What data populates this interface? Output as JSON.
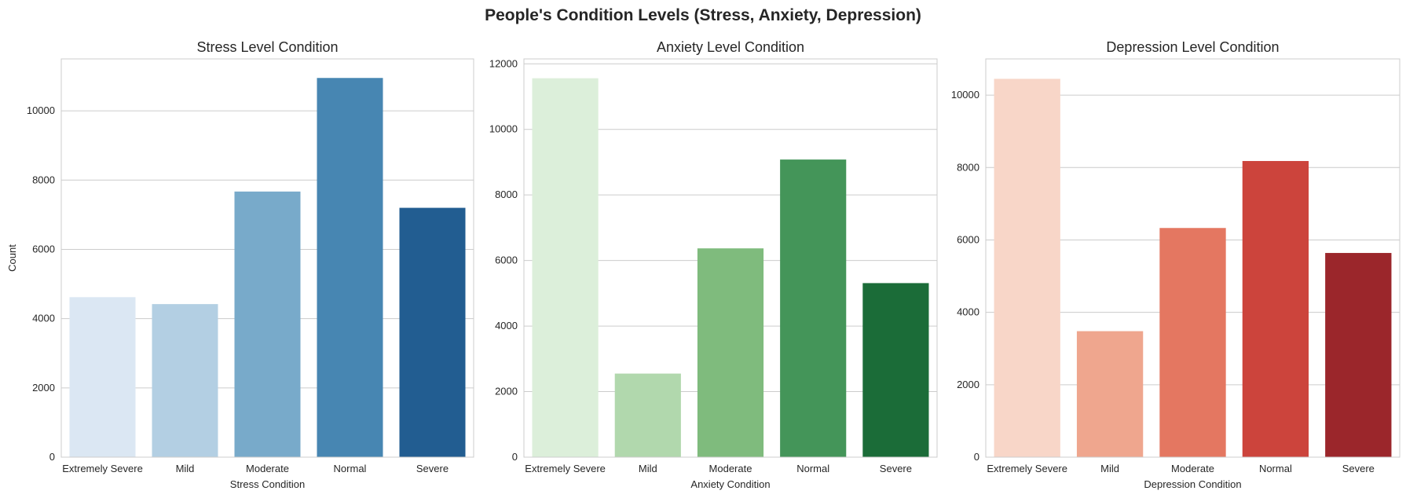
{
  "suptitle": "People's Condition Levels (Stress, Anxiety, Depression)",
  "chart_data": [
    {
      "type": "bar",
      "title": "Stress Level Condition",
      "xlabel": "Stress Condition",
      "ylabel": "Count",
      "categories": [
        "Extremely Severe",
        "Mild",
        "Moderate",
        "Normal",
        "Severe"
      ],
      "values": [
        4620,
        4420,
        7670,
        10950,
        7200
      ],
      "ylim": [
        0,
        11500
      ],
      "yticks": [
        0,
        2000,
        4000,
        6000,
        8000,
        10000
      ],
      "colors": [
        "#dbe7f3",
        "#b3cfe3",
        "#78aaca",
        "#4786b2",
        "#225d91"
      ],
      "grid": true
    },
    {
      "type": "bar",
      "title": "Anxiety Level Condition",
      "xlabel": "Anxiety Condition",
      "ylabel": "",
      "categories": [
        "Extremely Severe",
        "Mild",
        "Moderate",
        "Normal",
        "Severe"
      ],
      "values": [
        11560,
        2550,
        6370,
        9080,
        5310
      ],
      "ylim": [
        0,
        12150
      ],
      "yticks": [
        0,
        2000,
        4000,
        6000,
        8000,
        10000,
        12000
      ],
      "colors": [
        "#dcefda",
        "#b1d8ad",
        "#7fbb7d",
        "#449559",
        "#1b6c38"
      ],
      "grid": true
    },
    {
      "type": "bar",
      "title": "Depression Level Condition",
      "xlabel": "Depression Condition",
      "ylabel": "",
      "categories": [
        "Extremely Severe",
        "Mild",
        "Moderate",
        "Normal",
        "Severe"
      ],
      "values": [
        10450,
        3480,
        6330,
        8180,
        5640
      ],
      "ylim": [
        0,
        11000
      ],
      "yticks": [
        0,
        2000,
        4000,
        6000,
        8000,
        10000
      ],
      "colors": [
        "#f8d6c8",
        "#efa68e",
        "#e47761",
        "#cc443c",
        "#9b262b"
      ],
      "grid": true
    }
  ]
}
